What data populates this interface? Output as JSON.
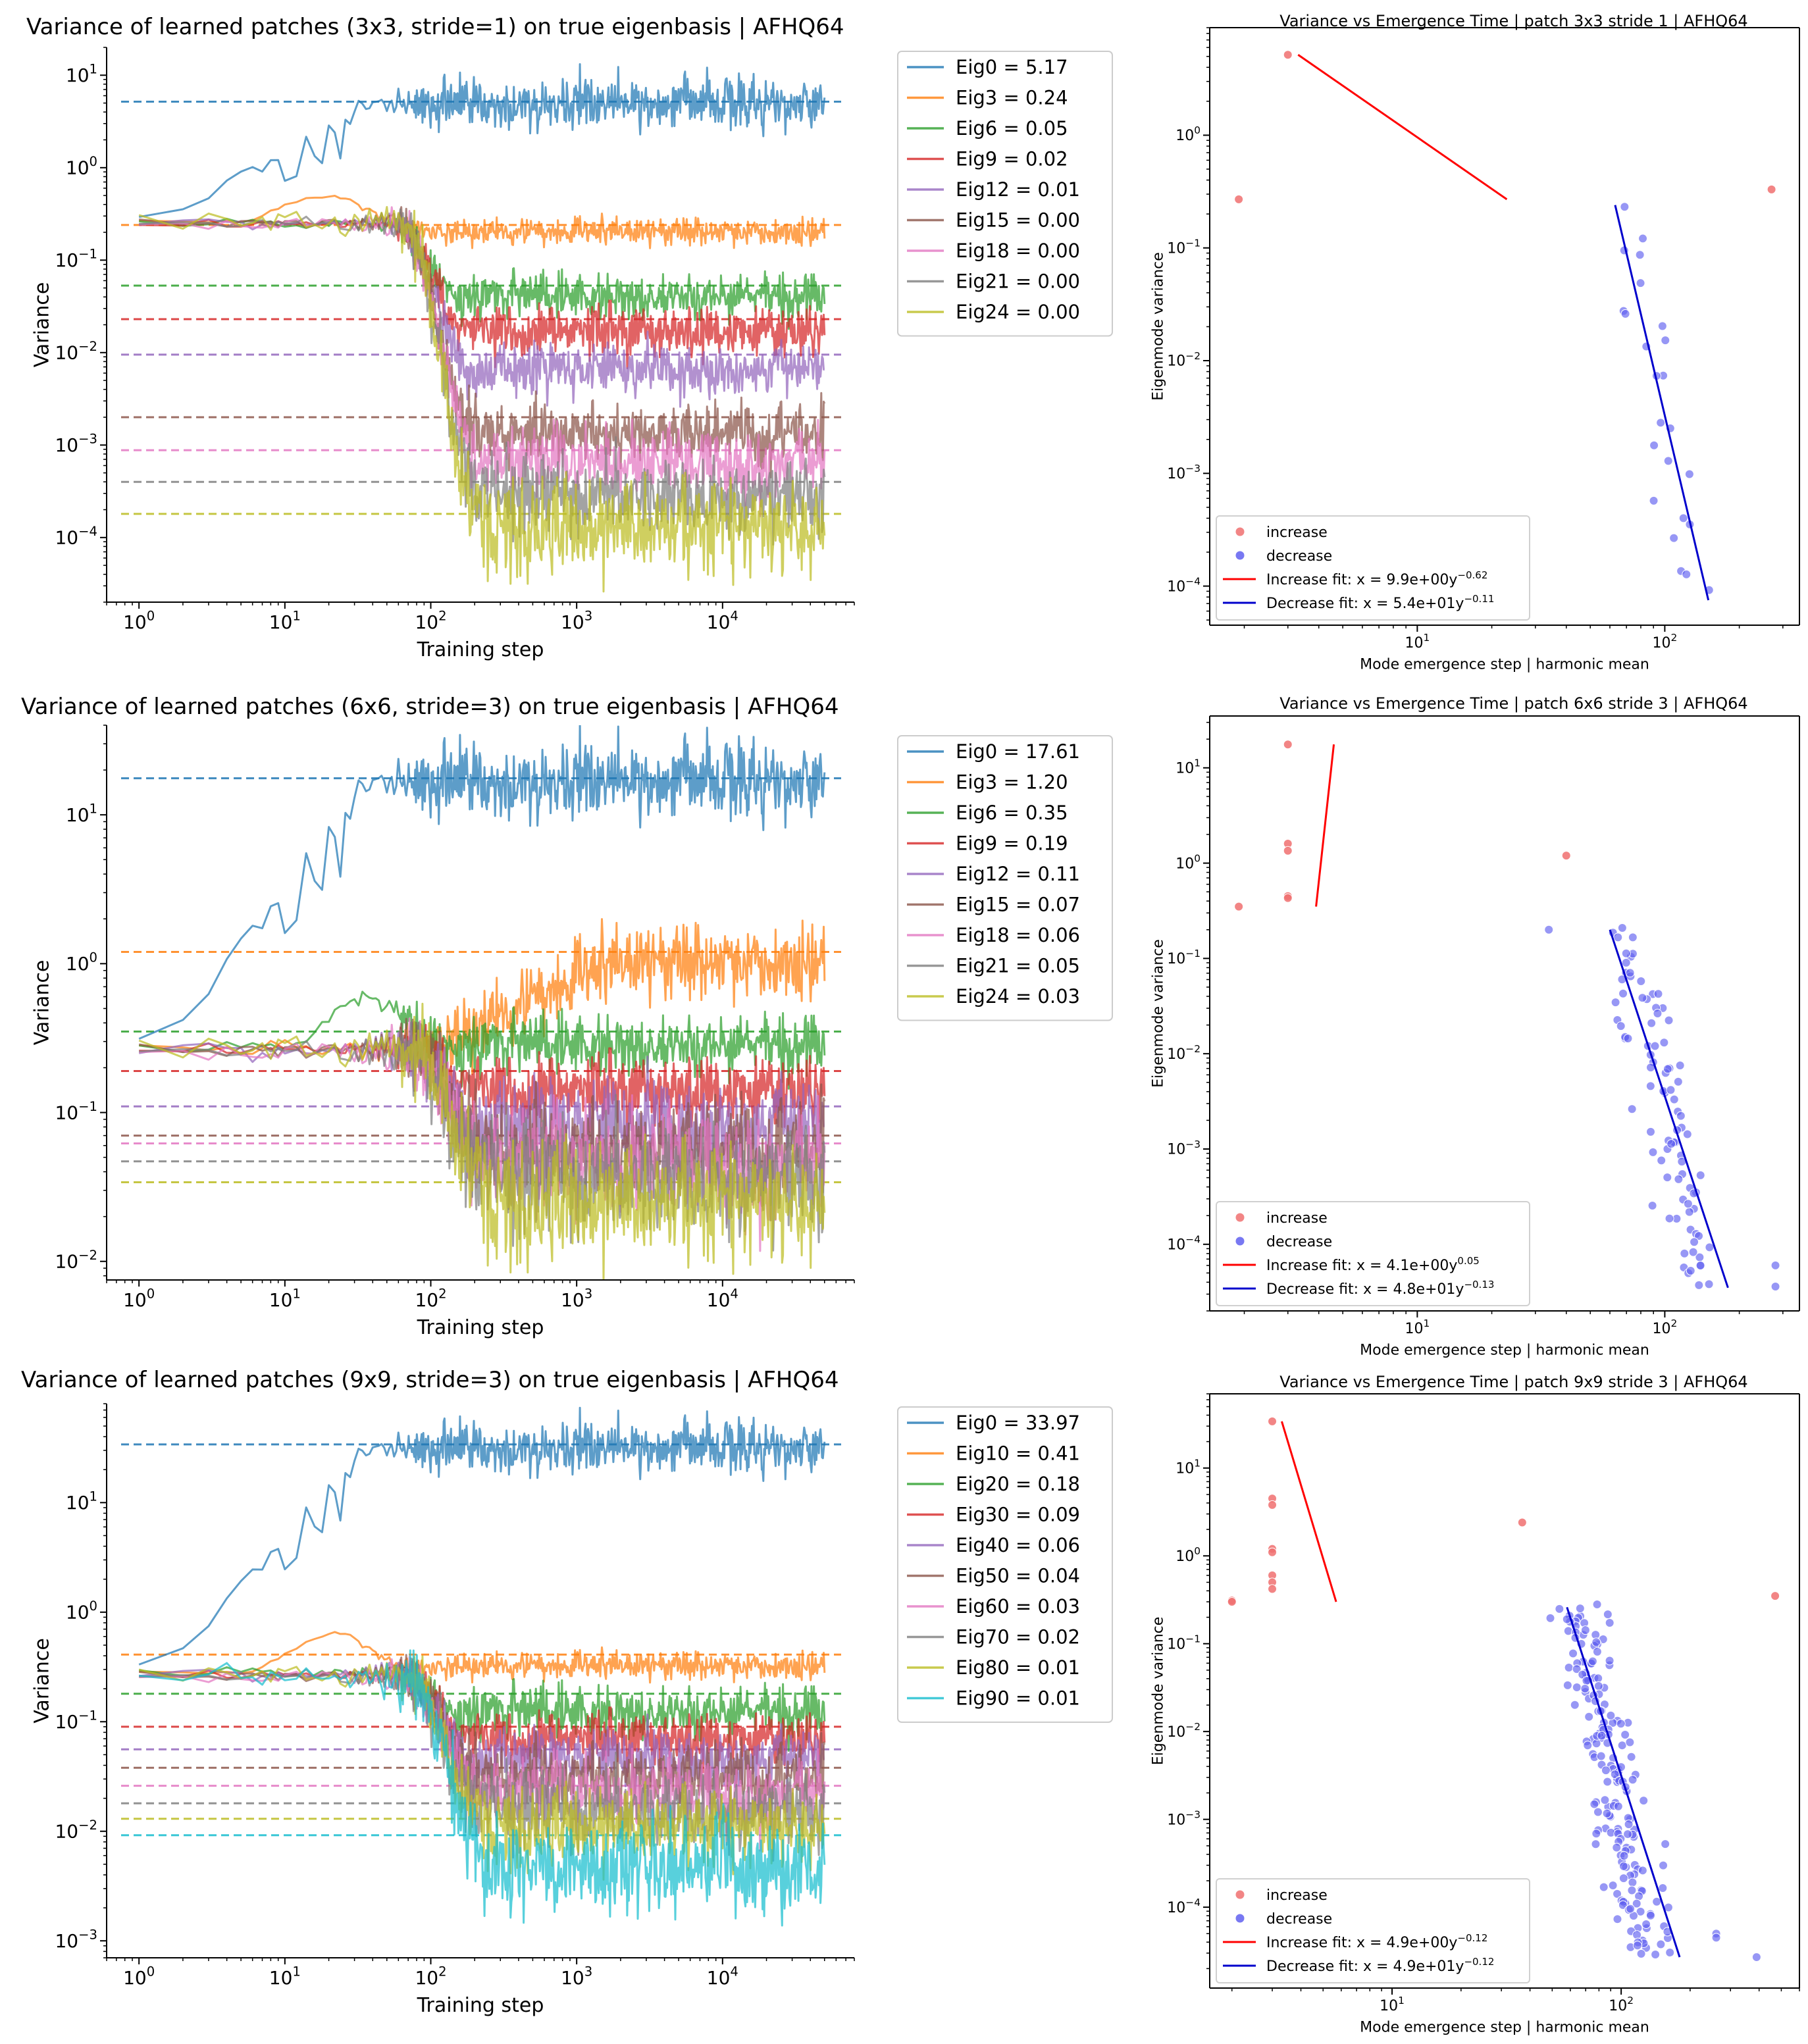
{
  "figure": "3x2 grid of variance plots",
  "colors": {
    "tab": [
      "#1f77b4",
      "#ff7f0e",
      "#2ca02c",
      "#d62728",
      "#9467bd",
      "#8c564b",
      "#e377c2",
      "#7f7f7f",
      "#bcbd22",
      "#17becf"
    ],
    "increase": "#f07070",
    "decrease": "#6060f0",
    "increase_fit": "#ff0000",
    "decrease_fit": "#0000cc"
  },
  "chart_data": [
    {
      "id": "p3_left",
      "type": "line",
      "title": "Variance of learned patches (3x3, stride=1) on true eigenbasis | AFHQ64",
      "xlabel": "Training step",
      "ylabel": "Variance",
      "xscale": "log",
      "yscale": "log",
      "xlim": [
        0.6,
        80000
      ],
      "ylim": [
        2e-05,
        20
      ],
      "xticks": [
        1,
        10,
        100,
        1000,
        10000
      ],
      "xtick_labels": [
        "10^0",
        "10^1",
        "10^2",
        "10^3",
        "10^4"
      ],
      "yticks": [
        0.0001,
        0.001,
        0.01,
        0.1,
        1,
        10
      ],
      "ytick_labels": [
        "10^-4",
        "10^-3",
        "10^-2",
        "10^-1",
        "10^0",
        "10^1"
      ],
      "legend_position": "outside-right",
      "series": [
        {
          "name": "Eig0 = 5.17",
          "true": 5.17,
          "start": 0.28,
          "plateau": 0.28,
          "peak": 0.28,
          "final": 5.0,
          "drop": 6,
          "noise": 0.14,
          "rise": true
        },
        {
          "name": "Eig3 = 0.24",
          "true": 0.24,
          "start": 0.26,
          "plateau": 0.26,
          "peak": 0.5,
          "final": 0.2,
          "drop": 50,
          "noise": 0.07
        },
        {
          "name": "Eig6 = 0.05",
          "true": 0.053,
          "start": 0.25,
          "plateau": 0.25,
          "final": 0.04,
          "drop": 70,
          "noise": 0.12
        },
        {
          "name": "Eig9 = 0.02",
          "true": 0.023,
          "start": 0.25,
          "plateau": 0.25,
          "final": 0.017,
          "drop": 75,
          "noise": 0.14
        },
        {
          "name": "Eig12 = 0.01",
          "true": 0.0095,
          "start": 0.25,
          "plateau": 0.25,
          "final": 0.0065,
          "drop": 80,
          "noise": 0.14
        },
        {
          "name": "Eig15 = 0.00",
          "true": 0.002,
          "start": 0.25,
          "plateau": 0.25,
          "final": 0.0013,
          "drop": 85,
          "noise": 0.16
        },
        {
          "name": "Eig18 = 0.00",
          "true": 0.00088,
          "start": 0.25,
          "plateau": 0.25,
          "final": 0.00065,
          "drop": 88,
          "noise": 0.18
        },
        {
          "name": "Eig21 = 0.00",
          "true": 0.0004,
          "start": 0.25,
          "plateau": 0.25,
          "final": 0.00028,
          "drop": 90,
          "noise": 0.2
        },
        {
          "name": "Eig24 = 0.00",
          "true": 0.00018,
          "start": 0.25,
          "plateau": 0.25,
          "final": 0.00013,
          "drop": 92,
          "noise": 0.26
        }
      ]
    },
    {
      "id": "p3_right",
      "type": "scatter",
      "title": "Variance vs Emergence Time | patch 3x3 stride 1 | AFHQ64",
      "xlabel": "Mode emergence step | harmonic mean",
      "ylabel": "Eigenmode variance",
      "xscale": "log",
      "yscale": "log",
      "xlim": [
        1.45,
        350
      ],
      "ylim": [
        4.5e-05,
        9
      ],
      "xticks": [
        10,
        100
      ],
      "xtick_labels": [
        "10^1",
        "10^2"
      ],
      "yticks": [
        0.0001,
        0.001,
        0.01,
        0.1,
        1
      ],
      "ytick_labels": [
        "10^-4",
        "10^-3",
        "10^-2",
        "10^-1",
        "10^0"
      ],
      "increase_points": [
        [
          1.9,
          0.27
        ],
        [
          3.0,
          5.17
        ],
        [
          270,
          0.33
        ]
      ],
      "decrease_cluster": {
        "n": 24,
        "x_center": 90,
        "x_spread": 0.2,
        "y_lo": 7.5e-05,
        "y_hi": 0.24
      },
      "increase_fit": [
        [
          3.3,
          5.17
        ],
        [
          23,
          0.27
        ]
      ],
      "decrease_fit": [
        [
          63,
          0.24
        ],
        [
          150,
          7.5e-05
        ]
      ],
      "legend": [
        "increase",
        "decrease",
        "Increase fit: x = 9.9e+00y^-0.62",
        "Decrease fit: x = 5.4e+01y^-0.11"
      ],
      "legend_position": "lower-left"
    },
    {
      "id": "p6_left",
      "type": "line",
      "title": "Variance of learned patches (6x6, stride=3) on true eigenbasis | AFHQ64",
      "xlabel": "Training step",
      "ylabel": "Variance",
      "xscale": "log",
      "yscale": "log",
      "xlim": [
        0.6,
        80000
      ],
      "ylim": [
        0.0075,
        40
      ],
      "xticks": [
        1,
        10,
        100,
        1000,
        10000
      ],
      "xtick_labels": [
        "10^0",
        "10^1",
        "10^2",
        "10^3",
        "10^4"
      ],
      "yticks": [
        0.01,
        0.1,
        1,
        10
      ],
      "ytick_labels": [
        "10^-2",
        "10^-1",
        "10^0",
        "10^1"
      ],
      "legend_position": "outside-right",
      "series": [
        {
          "name": "Eig0 = 17.61",
          "true": 17.61,
          "start": 0.3,
          "plateau": 0.3,
          "peak": 0.3,
          "final": 17.0,
          "drop": 6,
          "noise": 0.13,
          "rise": true
        },
        {
          "name": "Eig3 = 1.20",
          "true": 1.2,
          "start": 0.27,
          "plateau": 0.27,
          "peak": 0.35,
          "final": 1.0,
          "drop": 200,
          "noise": 0.12,
          "climb": true
        },
        {
          "name": "Eig6 = 0.35",
          "true": 0.35,
          "start": 0.27,
          "plateau": 0.27,
          "peak": 0.6,
          "final": 0.28,
          "drop": 120,
          "noise": 0.1
        },
        {
          "name": "Eig9 = 0.19",
          "true": 0.19,
          "start": 0.27,
          "plateau": 0.27,
          "final": 0.14,
          "drop": 90,
          "noise": 0.12
        },
        {
          "name": "Eig12 = 0.11",
          "true": 0.11,
          "start": 0.26,
          "plateau": 0.26,
          "final": 0.08,
          "drop": 95,
          "noise": 0.16
        },
        {
          "name": "Eig15 = 0.07",
          "true": 0.07,
          "start": 0.26,
          "plateau": 0.26,
          "final": 0.055,
          "drop": 100,
          "noise": 0.16
        },
        {
          "name": "Eig18 = 0.06",
          "true": 0.062,
          "start": 0.26,
          "plateau": 0.26,
          "final": 0.045,
          "drop": 100,
          "noise": 0.18
        },
        {
          "name": "Eig21 = 0.05",
          "true": 0.047,
          "start": 0.26,
          "plateau": 0.26,
          "final": 0.035,
          "drop": 105,
          "noise": 0.18
        },
        {
          "name": "Eig24 = 0.03",
          "true": 0.034,
          "start": 0.26,
          "plateau": 0.26,
          "final": 0.025,
          "drop": 110,
          "noise": 0.2
        }
      ]
    },
    {
      "id": "p6_right",
      "type": "scatter",
      "title": "Variance vs Emergence Time | patch 6x6 stride 3 | AFHQ64",
      "xlabel": "Mode emergence step | harmonic mean",
      "ylabel": "Eigenmode variance",
      "xscale": "log",
      "yscale": "log",
      "xlim": [
        1.45,
        350
      ],
      "ylim": [
        2e-05,
        35
      ],
      "xticks": [
        10,
        100
      ],
      "xtick_labels": [
        "10^1",
        "10^2"
      ],
      "yticks": [
        0.0001,
        0.001,
        0.01,
        0.1,
        1,
        10
      ],
      "ytick_labels": [
        "10^-4",
        "10^-3",
        "10^-2",
        "10^-1",
        "10^0",
        "10^1"
      ],
      "increase_points": [
        [
          1.9,
          0.35
        ],
        [
          3.0,
          17.61
        ],
        [
          3.0,
          1.6
        ],
        [
          3.0,
          1.35
        ],
        [
          3.0,
          0.45
        ],
        [
          3.0,
          0.43
        ],
        [
          40,
          1.2
        ]
      ],
      "decrease_cluster": {
        "n": 90,
        "x_center": 95,
        "x_spread": 0.22,
        "y_lo": 4e-05,
        "y_hi": 0.2
      },
      "extra_decrease": [
        [
          34,
          0.2
        ],
        [
          280,
          6e-05
        ],
        [
          280,
          3.6e-05
        ]
      ],
      "increase_fit": [
        [
          3.9,
          0.35
        ],
        [
          4.6,
          17.61
        ]
      ],
      "decrease_fit": [
        [
          60,
          0.2
        ],
        [
          180,
          3.5e-05
        ]
      ],
      "legend": [
        "increase",
        "decrease",
        "Increase fit: x = 4.1e+00y^0.05",
        "Decrease fit: x = 4.8e+01y^-0.13"
      ],
      "legend_position": "lower-left"
    },
    {
      "id": "p9_left",
      "type": "line",
      "title": "Variance of learned patches (9x9, stride=3) on true eigenbasis | AFHQ64",
      "xlabel": "Training step",
      "ylabel": "Variance",
      "xscale": "log",
      "yscale": "log",
      "xlim": [
        0.6,
        80000
      ],
      "ylim": [
        0.0007,
        80
      ],
      "xticks": [
        1,
        10,
        100,
        1000,
        10000
      ],
      "xtick_labels": [
        "10^0",
        "10^1",
        "10^2",
        "10^3",
        "10^4"
      ],
      "yticks": [
        0.001,
        0.01,
        0.1,
        1,
        10
      ],
      "ytick_labels": [
        "10^-3",
        "10^-2",
        "10^-1",
        "10^0",
        "10^1"
      ],
      "legend_position": "outside-right",
      "series": [
        {
          "name": "Eig0 = 33.97",
          "true": 33.97,
          "start": 0.32,
          "plateau": 0.32,
          "peak": 0.32,
          "final": 32.0,
          "drop": 6,
          "noise": 0.12,
          "rise": true
        },
        {
          "name": "Eig10 = 0.41",
          "true": 0.41,
          "start": 0.28,
          "plateau": 0.28,
          "peak": 0.65,
          "final": 0.32,
          "drop": 60,
          "noise": 0.06
        },
        {
          "name": "Eig20 = 0.18",
          "true": 0.18,
          "start": 0.28,
          "plateau": 0.28,
          "final": 0.12,
          "drop": 70,
          "noise": 0.12
        },
        {
          "name": "Eig30 = 0.09",
          "true": 0.09,
          "start": 0.27,
          "plateau": 0.27,
          "final": 0.07,
          "drop": 80,
          "noise": 0.12
        },
        {
          "name": "Eig40 = 0.06",
          "true": 0.056,
          "start": 0.27,
          "plateau": 0.27,
          "final": 0.045,
          "drop": 85,
          "noise": 0.14
        },
        {
          "name": "Eig50 = 0.04",
          "true": 0.038,
          "start": 0.26,
          "plateau": 0.26,
          "final": 0.03,
          "drop": 90,
          "noise": 0.15
        },
        {
          "name": "Eig60 = 0.03",
          "true": 0.026,
          "start": 0.26,
          "plateau": 0.26,
          "final": 0.022,
          "drop": 92,
          "noise": 0.16
        },
        {
          "name": "Eig70 = 0.02",
          "true": 0.018,
          "start": 0.26,
          "plateau": 0.26,
          "final": 0.015,
          "drop": 95,
          "noise": 0.17
        },
        {
          "name": "Eig80 = 0.01",
          "true": 0.013,
          "start": 0.26,
          "plateau": 0.26,
          "final": 0.011,
          "drop": 98,
          "noise": 0.18
        },
        {
          "name": "Eig90 = 0.01",
          "true": 0.0092,
          "start": 0.26,
          "plateau": 0.26,
          "final": 0.005,
          "drop": 100,
          "noise": 0.22
        }
      ]
    },
    {
      "id": "p9_right",
      "type": "scatter",
      "title": "Variance vs Emergence Time | patch 9x9 stride 3 | AFHQ64",
      "xlabel": "Mode emergence step | harmonic mean",
      "ylabel": "Eigenmode variance",
      "xscale": "log",
      "yscale": "log",
      "xlim": [
        1.6,
        600
      ],
      "ylim": [
        1.2e-05,
        70
      ],
      "xticks": [
        10,
        100
      ],
      "xtick_labels": [
        "10^1",
        "10^2"
      ],
      "yticks": [
        0.0001,
        0.001,
        0.01,
        0.1,
        1,
        10
      ],
      "ytick_labels": [
        "10^-4",
        "10^-3",
        "10^-2",
        "10^-1",
        "10^0",
        "10^1"
      ],
      "increase_points": [
        [
          2.0,
          0.31
        ],
        [
          2.0,
          0.3
        ],
        [
          3.0,
          33.97
        ],
        [
          3.0,
          4.5
        ],
        [
          3.0,
          3.8
        ],
        [
          3.0,
          1.2
        ],
        [
          3.0,
          1.1
        ],
        [
          3.0,
          0.6
        ],
        [
          3.0,
          0.5
        ],
        [
          3.0,
          0.42
        ],
        [
          37,
          2.4
        ],
        [
          470,
          0.35
        ]
      ],
      "decrease_cluster": {
        "n": 190,
        "x_center": 88,
        "x_spread": 0.22,
        "y_lo": 3e-05,
        "y_hi": 0.26
      },
      "extra_decrease": [
        [
          58,
          0.19
        ],
        [
          260,
          5e-05
        ],
        [
          260,
          4.5e-05
        ],
        [
          390,
          2.7e-05
        ]
      ],
      "increase_fit": [
        [
          3.3,
          33.97
        ],
        [
          5.7,
          0.3
        ]
      ],
      "decrease_fit": [
        [
          58,
          0.26
        ],
        [
          180,
          2.7e-05
        ]
      ],
      "legend": [
        "increase",
        "decrease",
        "Increase fit: x = 4.9e+00y^-0.12",
        "Decrease fit: x = 4.9e+01y^-0.12"
      ],
      "legend_position": "lower-left"
    }
  ]
}
